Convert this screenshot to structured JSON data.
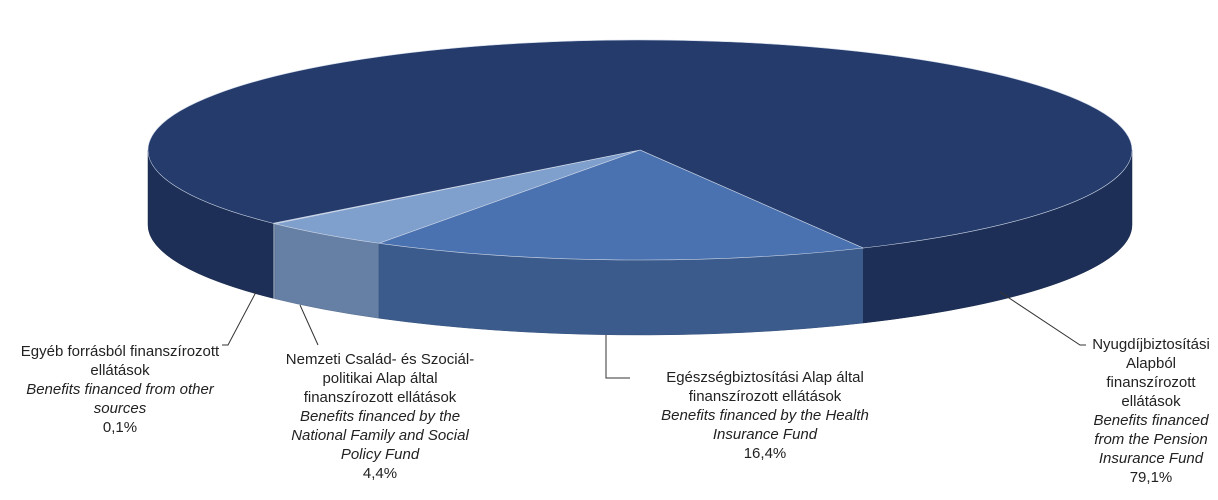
{
  "chart_data": {
    "type": "pie",
    "categories": [
      "Egyéb forrásból finanszírozott ellátások",
      "Nemzeti Család- és Szociál-politikai Alap által finanszírozott ellátások",
      "Egészségbiztosítási Alap által finanszírozott ellátások",
      "Nyugdíjbiztosítási Alapból finanszírozott ellátások"
    ],
    "categories_en": [
      "Benefits financed from other sources",
      "Benefits financed by the National Family and Social Policy Fund",
      "Benefits financed by the Health Insurance Fund",
      "Benefits financed from the Pension Insurance Fund"
    ],
    "values": [
      0.1,
      4.4,
      16.4,
      79.1
    ],
    "value_labels": [
      "0,1%",
      "4,4%",
      "16,4%",
      "79,1%"
    ],
    "colors": [
      "#a9bfdf",
      "#7f9fcd",
      "#4a72b0",
      "#243b6c"
    ]
  }
}
